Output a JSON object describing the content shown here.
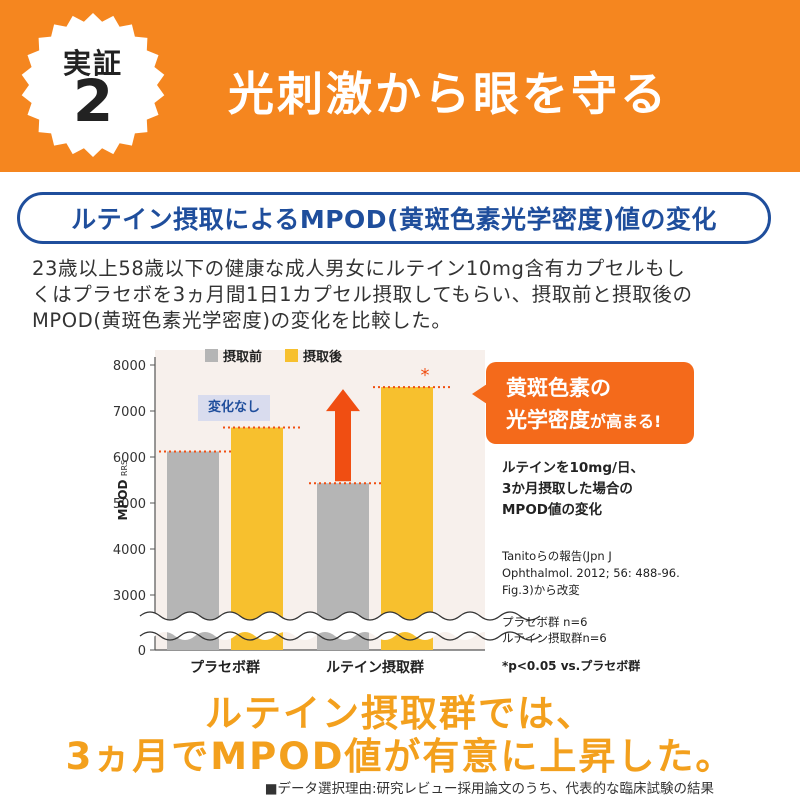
{
  "header": {
    "badge_label": "実証",
    "badge_number": "2",
    "title": "光刺激から眼を守る"
  },
  "section_title": "ルテイン摂取によるMPOD(黄斑色素光学密度)値の変化",
  "description": {
    "lines": [
      "23歳以上58歳以下の健康な成人男女にルテイン10mg含有カプセルもし",
      "くはプラセボを3ヵ月間1日1カプセル摂取してもらい、摂取前と摂取後の",
      "MPOD(黄斑色素光学密度)の変化を比較した。"
    ]
  },
  "chart_data": {
    "type": "bar",
    "categories": [
      "プラセボ群",
      "ルテイン摂取群"
    ],
    "series": [
      {
        "name": "摂取前",
        "values": [
          6120,
          5430
        ],
        "color": "#b5b5b5"
      },
      {
        "name": "摂取後",
        "values": [
          6640,
          7520
        ],
        "color": "#f7c02e"
      }
    ],
    "ylabel_main": "MPOD",
    "ylabel_sub": "RRS",
    "yticks": [
      0,
      3000,
      4000,
      5000,
      6000,
      7000,
      8000
    ],
    "ytick_labels": [
      "0",
      "3000",
      "4000",
      "5000",
      "6000",
      "7000",
      "8000"
    ],
    "ylim": [
      3000,
      8000
    ],
    "axis_break": "between 0 and 3000",
    "legend_position": "top-left",
    "grid": false,
    "significance_mark": "*",
    "arrow_color": "#f04e12"
  },
  "annotations": {
    "no_change": "変化なし",
    "callout_line1": "黄斑色素の",
    "callout_line2_main": "光学密度",
    "callout_line2_small": "が高まる!",
    "note_lines": [
      "ルテインを10mg/日、",
      "3か月摂取した場合の",
      "MPOD値の変化"
    ],
    "reference_lines": [
      "Tanitoらの報告(Jpn J",
      "Ophthalmol. 2012; 56: 488-96.",
      "Fig.3)から改変"
    ],
    "group_lines": [
      "プラセボ群 n=6",
      "ルテイン摂取群n=6"
    ],
    "p_note": "*p<0.05 vs.プラセボ群"
  },
  "conclusion": {
    "line1": "ルテイン摂取群では、",
    "line2": "3ヵ月でMPOD値が有意に上昇した。"
  },
  "footer": "■データ選択理由:研究レビュー採用論文のうち、代表的な臨床試験の結果",
  "colors": {
    "header_orange": "#f5861f",
    "title_blue": "#1f4e9c",
    "callout_orange": "#f46a1b",
    "conclusion_yellow": "#f3a01d"
  }
}
